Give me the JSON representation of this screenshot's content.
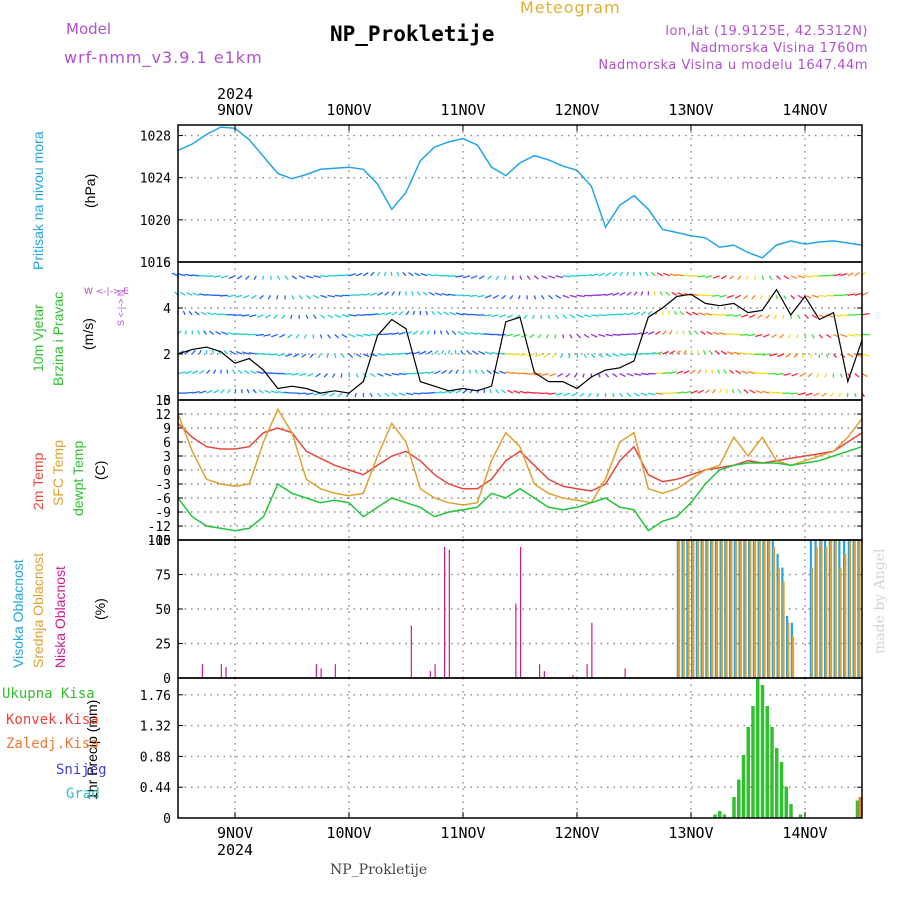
{
  "header": {
    "model_label": "Model",
    "model_name": "wrf-nmm_v3.9.1 e1km",
    "station": "NP_Prokletije",
    "app_title": "Meteogram",
    "lonlat": "lon,lat (19.9125E, 42.5312N)",
    "altitude": "Nadmorska Visina 1760m",
    "model_altitude": "Nadmorska Visina u modelu 1647.44m"
  },
  "footer": {
    "station": "NP_Prokletije",
    "credit": "made by Angel"
  },
  "colors": {
    "pressure": "#22a4e8",
    "temp2m": "#e8463c",
    "sfc": "#e0a030",
    "dewpt": "#22c43a",
    "hi_cloud": "#22a4e8",
    "mid_cloud": "#e0a030",
    "low_cloud": "#d01890",
    "precip": "#30c030",
    "frame": "#000000",
    "grid": "#909090",
    "violet": "#b050d0"
  },
  "panels": {
    "pressure": {
      "label1": "Pritisak na nivou mora",
      "label2": "(hPa)"
    },
    "wind": {
      "label1": "10m Vjetar",
      "label2": "Brzina i Pravac",
      "label3": "(m/s)",
      "compass": "W <-|-> E",
      "compass_ns": "S <-|-> N"
    },
    "temperature": {
      "label1": "2m Temp",
      "label2": "SFC Temp",
      "label3": "dewpt Temp",
      "label4": "(C)"
    },
    "cloud": {
      "label1": "Visoka Oblacnost",
      "label2": "Srednja Oblacnost",
      "label3": "Niska Oblacnost",
      "label4": "(%)"
    },
    "precip": {
      "label_total": "Ukupna Kisa",
      "label_conv": "Konvek.Kisa",
      "label_frozen": "Zaledj.Kisa",
      "label_snow": "Snijeg",
      "label_hail": "Grad",
      "unit": "1hr Precip (mm)"
    }
  },
  "chart_data": [
    {
      "type": "line",
      "id": "pressure",
      "title": "Pritisak na nivou mora",
      "ylabel": "(hPa)",
      "x_categories": [
        "9NOV",
        "10NOV",
        "11NOV",
        "12NOV",
        "13NOV",
        "14NOV"
      ],
      "x_year": "2024",
      "x_unit": "hours from 2024-11-08 12:00",
      "xlim": [
        0,
        144
      ],
      "ylim": [
        1016,
        1029
      ],
      "yticks": [
        1016,
        1020,
        1024,
        1028
      ],
      "series": [
        {
          "x": [
            0,
            3,
            6,
            9,
            12,
            15,
            18,
            21,
            24,
            27,
            30,
            33,
            36,
            39,
            42,
            45,
            48,
            51,
            54,
            57,
            60,
            63,
            66,
            69,
            72,
            75,
            78,
            81,
            84,
            87,
            90,
            93,
            96,
            99,
            102,
            105,
            108,
            111,
            114,
            117,
            120,
            123,
            126,
            129,
            132,
            135,
            138,
            141,
            144
          ],
          "values": [
            1026.6,
            1027.2,
            1028.1,
            1028.8,
            1028.7,
            1027.6,
            1026.0,
            1024.4,
            1023.9,
            1024.3,
            1024.8,
            1024.9,
            1025.0,
            1024.8,
            1023.4,
            1021.0,
            1022.6,
            1025.6,
            1026.9,
            1027.4,
            1027.7,
            1027.1,
            1025.0,
            1024.2,
            1025.4,
            1026.1,
            1025.7,
            1025.1,
            1024.7,
            1023.2,
            1019.3,
            1021.4,
            1022.3,
            1021.0,
            1019.1,
            1018.8,
            1018.5,
            1018.3,
            1017.4,
            1017.6,
            1016.9,
            1016.4,
            1017.6,
            1018.0,
            1017.7,
            1017.9,
            1018.0,
            1017.8,
            1017.6
          ],
          "color": "#22a4e8"
        }
      ],
      "grid": true
    },
    {
      "type": "line",
      "id": "wind",
      "title": "10m Vjetar Brzina i Pravac",
      "ylabel": "(m/s)",
      "xlim": [
        0,
        144
      ],
      "ylim": [
        0,
        6
      ],
      "yticks": [
        0,
        2,
        4,
        6
      ],
      "series": [
        {
          "x": [
            0,
            3,
            6,
            9,
            12,
            15,
            18,
            21,
            24,
            27,
            30,
            33,
            36,
            39,
            42,
            45,
            48,
            51,
            54,
            57,
            60,
            63,
            66,
            69,
            72,
            75,
            78,
            81,
            84,
            87,
            90,
            93,
            96,
            99,
            102,
            105,
            108,
            111,
            114,
            117,
            120,
            123,
            126,
            129,
            132,
            135,
            138,
            141,
            144
          ],
          "values": [
            2.0,
            2.2,
            2.3,
            2.1,
            1.6,
            1.8,
            1.3,
            0.5,
            0.6,
            0.5,
            0.3,
            0.4,
            0.3,
            0.8,
            2.8,
            3.5,
            3.1,
            0.8,
            0.6,
            0.4,
            0.5,
            0.4,
            0.6,
            3.4,
            3.6,
            1.2,
            0.8,
            0.8,
            0.5,
            1.0,
            1.3,
            1.4,
            1.7,
            3.6,
            4.0,
            4.5,
            4.6,
            4.2,
            4.1,
            4.2,
            3.8,
            3.9,
            4.8,
            3.7,
            4.5,
            3.5,
            3.8,
            0.8,
            2.6
          ],
          "color": "#000000"
        }
      ],
      "grid": true
    },
    {
      "type": "line",
      "id": "temperature",
      "title": "2m Temp / SFC Temp / dewpt Temp",
      "ylabel": "(C)",
      "xlim": [
        0,
        144
      ],
      "ylim": [
        -15,
        15
      ],
      "yticks": [
        -15,
        -12,
        -9,
        -6,
        -3,
        0,
        3,
        6,
        9,
        12,
        15
      ],
      "series": [
        {
          "name": "2m Temp",
          "color": "#e8463c",
          "x": [
            0,
            3,
            6,
            9,
            12,
            15,
            18,
            21,
            24,
            27,
            30,
            33,
            36,
            39,
            42,
            45,
            48,
            51,
            54,
            57,
            60,
            63,
            66,
            69,
            72,
            75,
            78,
            81,
            84,
            87,
            90,
            93,
            96,
            99,
            102,
            105,
            108,
            111,
            114,
            117,
            120,
            123,
            126,
            129,
            132,
            135,
            138,
            141,
            144
          ],
          "values": [
            10,
            7,
            5,
            4.5,
            4.5,
            5,
            8,
            9,
            8,
            4,
            2.5,
            1,
            0,
            -1,
            1,
            3,
            4,
            2,
            -1,
            -3,
            -4,
            -4,
            -2,
            2,
            4,
            1,
            -2,
            -3.5,
            -4,
            -4.5,
            -3,
            2,
            5,
            -1,
            -2.5,
            -2,
            -1,
            0,
            0.5,
            1,
            2,
            1.5,
            2,
            2.5,
            3,
            3.5,
            4,
            6,
            8
          ]
        },
        {
          "name": "SFC Temp",
          "color": "#e0a030",
          "x": [
            0,
            3,
            6,
            9,
            12,
            15,
            18,
            21,
            24,
            27,
            30,
            33,
            36,
            39,
            42,
            45,
            48,
            51,
            54,
            57,
            60,
            63,
            66,
            69,
            72,
            75,
            78,
            81,
            84,
            87,
            90,
            93,
            96,
            99,
            102,
            105,
            108,
            111,
            114,
            117,
            120,
            123,
            126,
            129,
            132,
            135,
            138,
            141,
            144
          ],
          "values": [
            12,
            4,
            -2,
            -3,
            -3.5,
            -3,
            6,
            13,
            8,
            -2,
            -4,
            -5,
            -5.5,
            -5,
            3,
            10,
            6,
            -4,
            -6,
            -7,
            -7.5,
            -7,
            2,
            8,
            5,
            -3,
            -5,
            -6,
            -6.5,
            -7,
            -2,
            6,
            8,
            -4,
            -5,
            -4,
            -2,
            0,
            1,
            7,
            3,
            7,
            2,
            1,
            2,
            3,
            4,
            7,
            11
          ],
          "dashed": false
        },
        {
          "name": "dewpt Temp",
          "color": "#22c43a",
          "x": [
            0,
            3,
            6,
            9,
            12,
            15,
            18,
            21,
            24,
            27,
            30,
            33,
            36,
            39,
            42,
            45,
            48,
            51,
            54,
            57,
            60,
            63,
            66,
            69,
            72,
            75,
            78,
            81,
            84,
            87,
            90,
            93,
            96,
            99,
            102,
            105,
            108,
            111,
            114,
            117,
            120,
            123,
            126,
            129,
            132,
            135,
            138,
            141,
            144
          ],
          "values": [
            -6,
            -10,
            -12,
            -12.5,
            -13,
            -12.5,
            -10,
            -3,
            -5,
            -6,
            -7,
            -6.5,
            -7,
            -10,
            -8,
            -6,
            -7,
            -8,
            -10,
            -9,
            -8.5,
            -8,
            -5,
            -6,
            -4,
            -6,
            -8,
            -8.5,
            -8,
            -7,
            -6,
            -8,
            -8.5,
            -13,
            -11,
            -10,
            -7,
            -3,
            0,
            1,
            1.5,
            1.5,
            1.5,
            1,
            1.5,
            2,
            3,
            4,
            5
          ]
        }
      ],
      "grid": true
    },
    {
      "type": "bar",
      "id": "cloud",
      "title": "Visoka / Srednja / Niska Oblacnost",
      "ylabel": "(%)",
      "xlim": [
        0,
        144
      ],
      "ylim": [
        0,
        100
      ],
      "yticks": [
        0,
        25,
        50,
        75,
        100
      ],
      "series": [
        {
          "name": "Niska Oblacnost",
          "color": "#d01890",
          "x": [
            5,
            9,
            10,
            29,
            30,
            33,
            49,
            53,
            54,
            56,
            57,
            71,
            72,
            76,
            77,
            83,
            86,
            87,
            94
          ],
          "values": [
            10,
            10,
            8,
            10,
            7,
            10,
            38,
            5,
            10,
            95,
            93,
            54,
            95,
            10,
            5,
            2,
            10,
            40,
            7
          ]
        },
        {
          "name": "Visoka Oblacnost",
          "color": "#22a4e8",
          "x": [
            105,
            106,
            107,
            108,
            109,
            110,
            111,
            112,
            113,
            114,
            115,
            116,
            117,
            118,
            119,
            120,
            121,
            122,
            123,
            124,
            125,
            126,
            127,
            128,
            129,
            130,
            131,
            132,
            133,
            134,
            135,
            136,
            137,
            138,
            139,
            140,
            141,
            142,
            143
          ],
          "values": [
            100,
            100,
            100,
            100,
            100,
            100,
            100,
            100,
            100,
            100,
            100,
            100,
            100,
            100,
            100,
            100,
            100,
            100,
            100,
            100,
            100,
            90,
            80,
            45,
            40,
            0,
            0,
            0,
            100,
            100,
            100,
            100,
            100,
            100,
            100,
            100,
            100,
            100,
            100
          ]
        },
        {
          "name": "Srednja Oblacnost",
          "color": "#e0a030",
          "x": [
            105,
            106,
            107,
            108,
            109,
            110,
            111,
            112,
            113,
            114,
            115,
            116,
            117,
            118,
            119,
            120,
            121,
            122,
            123,
            124,
            125,
            126,
            127,
            128,
            129,
            130,
            131,
            132,
            133,
            134,
            135,
            136,
            137,
            138,
            139,
            140,
            141,
            142,
            143
          ],
          "values": [
            100,
            100,
            100,
            100,
            100,
            100,
            100,
            100,
            100,
            100,
            100,
            100,
            100,
            100,
            100,
            100,
            100,
            100,
            100,
            100,
            95,
            80,
            70,
            40,
            30,
            0,
            0,
            0,
            80,
            95,
            100,
            95,
            100,
            100,
            80,
            90,
            100,
            100,
            100
          ]
        }
      ],
      "grid": true
    },
    {
      "type": "bar",
      "id": "precip",
      "title": "1hr Precip",
      "ylabel": "1hr Precip (mm)",
      "xlim": [
        0,
        144
      ],
      "ylim": [
        0,
        2.0
      ],
      "yticks": [
        0,
        0.44,
        0.88,
        1.32,
        1.76
      ],
      "series": [
        {
          "name": "Ukupna Kisa",
          "color": "#30c030",
          "x": [
            113,
            114,
            115,
            117,
            118,
            119,
            120,
            121,
            122,
            123,
            124,
            125,
            126,
            127,
            128,
            129,
            131,
            143
          ],
          "values": [
            0.05,
            0.1,
            0.05,
            0.3,
            0.55,
            0.9,
            1.3,
            1.6,
            2.0,
            1.9,
            1.6,
            1.3,
            1.0,
            0.8,
            0.45,
            0.2,
            0.05,
            0.25
          ]
        },
        {
          "name": "Zaledj.Kisa",
          "color": "#f07830",
          "x": [
            143.6
          ],
          "values": [
            0.3
          ]
        }
      ],
      "grid": true
    }
  ]
}
